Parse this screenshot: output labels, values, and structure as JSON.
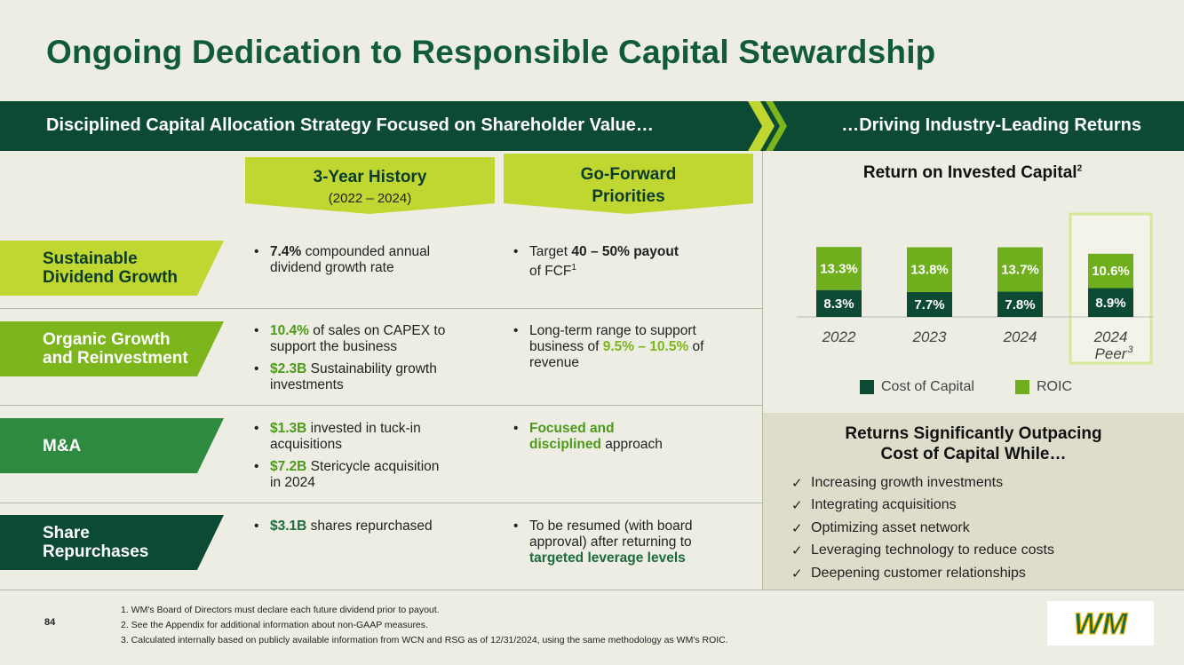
{
  "title": "Ongoing Dedication to Responsible Capital Stewardship",
  "banner": {
    "left": "Disciplined Capital Allocation Strategy Focused on Shareholder Value…",
    "right": "…Driving Industry-Leading Returns"
  },
  "columns": {
    "history": {
      "title": "3-Year History",
      "sub": "(2022 – 2024)"
    },
    "forward": {
      "title_line1": "Go-Forward",
      "title_line2": "Priorities"
    }
  },
  "rows": [
    {
      "label_line1": "Sustainable",
      "label_line2": "Dividend Growth",
      "history": [
        {
          "hl": "7.4%",
          "rest1": " compounded annual",
          "rest2": "dividend growth rate"
        }
      ],
      "forward": [
        {
          "pre": "Target ",
          "hl": "40 – 50% payout",
          "rest2": "of FCF",
          "sup": "1"
        }
      ]
    },
    {
      "label_line1": "Organic Growth",
      "label_line2": "and Reinvestment",
      "history": [
        {
          "hl": "10.4%",
          "rest1": " of sales on CAPEX to",
          "rest2": "support the business"
        },
        {
          "hl": "$2.3B",
          "rest1": " Sustainability growth",
          "rest2": "investments"
        }
      ],
      "forward": [
        {
          "line1": "Long-term range to support",
          "pre": "business of ",
          "hl": "9.5% – 10.5%",
          "post": " of",
          "line3": "revenue"
        }
      ]
    },
    {
      "label": "M&A",
      "history": [
        {
          "hl": "$1.3B",
          "rest1": " invested in tuck-in",
          "rest2": "acquisitions"
        },
        {
          "hl": "$7.2B",
          "rest1": " Stericycle acquisition",
          "rest2": "in 2024"
        }
      ],
      "forward": [
        {
          "hl1": "Focused and",
          "hl2": "disciplined",
          "post": " approach"
        }
      ]
    },
    {
      "label_line1": "Share",
      "label_line2": "Repurchases",
      "history": [
        {
          "hl": "$3.1B",
          "rest1": " shares repurchased"
        }
      ],
      "forward": [
        {
          "line1": "To be resumed (with board",
          "line2": "approval) after returning to",
          "hl": "targeted leverage levels"
        }
      ]
    }
  ],
  "chart_data": {
    "type": "bar",
    "stacked": true,
    "title": "Return on Invested Capital",
    "title_sup": "2",
    "categories": [
      "2022",
      "2023",
      "2024",
      "2024"
    ],
    "category_sub": [
      "",
      "",
      "",
      "Peer"
    ],
    "category_sup": [
      "",
      "",
      "",
      "3"
    ],
    "series": [
      {
        "name": "Cost of Capital",
        "values": [
          8.3,
          7.7,
          7.8,
          8.9
        ],
        "labels": [
          "8.3%",
          "7.7%",
          "7.8%",
          "8.9%"
        ],
        "color": "#0D4A33"
      },
      {
        "name": "ROIC",
        "values": [
          13.3,
          13.8,
          13.7,
          10.6
        ],
        "labels": [
          "13.3%",
          "13.8%",
          "13.7%",
          "10.6%"
        ],
        "color": "#6FAE1C"
      }
    ],
    "highlight_category_index": 3,
    "legend": "bottom"
  },
  "returns": {
    "title_line1": "Returns Significantly Outpacing",
    "title_line2": "Cost of Capital While…",
    "items": [
      "Increasing growth investments",
      "Integrating acquisitions",
      "Optimizing asset network",
      "Leveraging technology to reduce costs",
      "Deepening customer relationships"
    ]
  },
  "footnotes": [
    "1. WM's Board of Directors must declare each future dividend prior to payout.",
    "2. See the Appendix for additional information about non-GAAP measures.",
    "3. Calculated internally based on publicly available information from WCN and RSG as of 12/31/2024, using the same methodology as WM's ROIC."
  ],
  "page_number": "84",
  "logo_text": "WM",
  "colors": {
    "dark_green": "#0D4A33",
    "lime": "#BFD730",
    "mid_green": "#7DB61C",
    "title_green": "#115A3C"
  }
}
